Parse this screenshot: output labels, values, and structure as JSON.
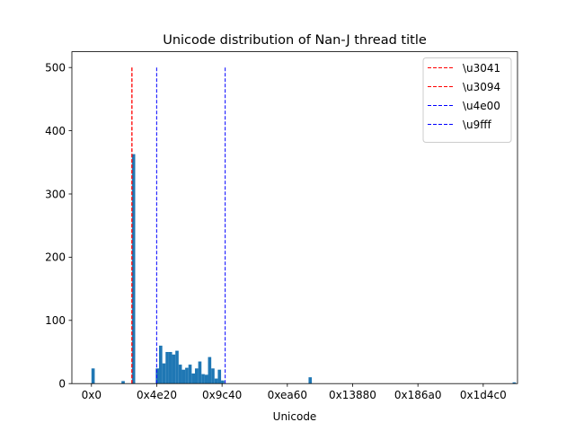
{
  "chart_data": {
    "type": "bar",
    "title": "Unicode distribution of Nan-J thread title",
    "xlabel": "Unicode",
    "ylabel": "",
    "xlim": [
      -6000,
      130500
    ],
    "ylim": [
      0,
      525
    ],
    "x_ticks": [
      {
        "value": 0,
        "label": "0x0"
      },
      {
        "value": 20000,
        "label": "0x4e20"
      },
      {
        "value": 40000,
        "label": "0x9c40"
      },
      {
        "value": 60000,
        "label": "0xea60"
      },
      {
        "value": 80000,
        "label": "0x13880"
      },
      {
        "value": 100000,
        "label": "0x186a0"
      },
      {
        "value": 120000,
        "label": "0x1d4c0"
      }
    ],
    "y_ticks": [
      0,
      100,
      200,
      300,
      400,
      500
    ],
    "bin_width": 1000,
    "histogram": [
      {
        "x": 0,
        "count": 24
      },
      {
        "x": 9200,
        "count": 4
      },
      {
        "x": 12400,
        "count": 363
      },
      {
        "x": 19700,
        "count": 24
      },
      {
        "x": 20700,
        "count": 60
      },
      {
        "x": 21700,
        "count": 32
      },
      {
        "x": 22700,
        "count": 50
      },
      {
        "x": 23700,
        "count": 50
      },
      {
        "x": 24700,
        "count": 46
      },
      {
        "x": 25700,
        "count": 52
      },
      {
        "x": 26700,
        "count": 30
      },
      {
        "x": 27700,
        "count": 22
      },
      {
        "x": 28700,
        "count": 25
      },
      {
        "x": 29700,
        "count": 30
      },
      {
        "x": 30700,
        "count": 16
      },
      {
        "x": 31700,
        "count": 24
      },
      {
        "x": 32700,
        "count": 35
      },
      {
        "x": 33700,
        "count": 15
      },
      {
        "x": 34700,
        "count": 14
      },
      {
        "x": 35700,
        "count": 42
      },
      {
        "x": 36700,
        "count": 24
      },
      {
        "x": 37700,
        "count": 8
      },
      {
        "x": 38700,
        "count": 22
      },
      {
        "x": 39700,
        "count": 5
      },
      {
        "x": 66500,
        "count": 10
      },
      {
        "x": 129000,
        "count": 2
      }
    ],
    "vlines": [
      {
        "name": "\\u3041",
        "x": 12353,
        "color": "#ff0000"
      },
      {
        "name": "\\u3094",
        "x": 12436,
        "color": "#ff0000"
      },
      {
        "name": "\\u4e00",
        "x": 19968,
        "color": "#0000ff"
      },
      {
        "name": "\\u9fff",
        "x": 40959,
        "color": "#0000ff"
      }
    ],
    "vline_top": 500,
    "bar_color": "#1f77b4",
    "legend_position": "top-right",
    "grid": false
  }
}
